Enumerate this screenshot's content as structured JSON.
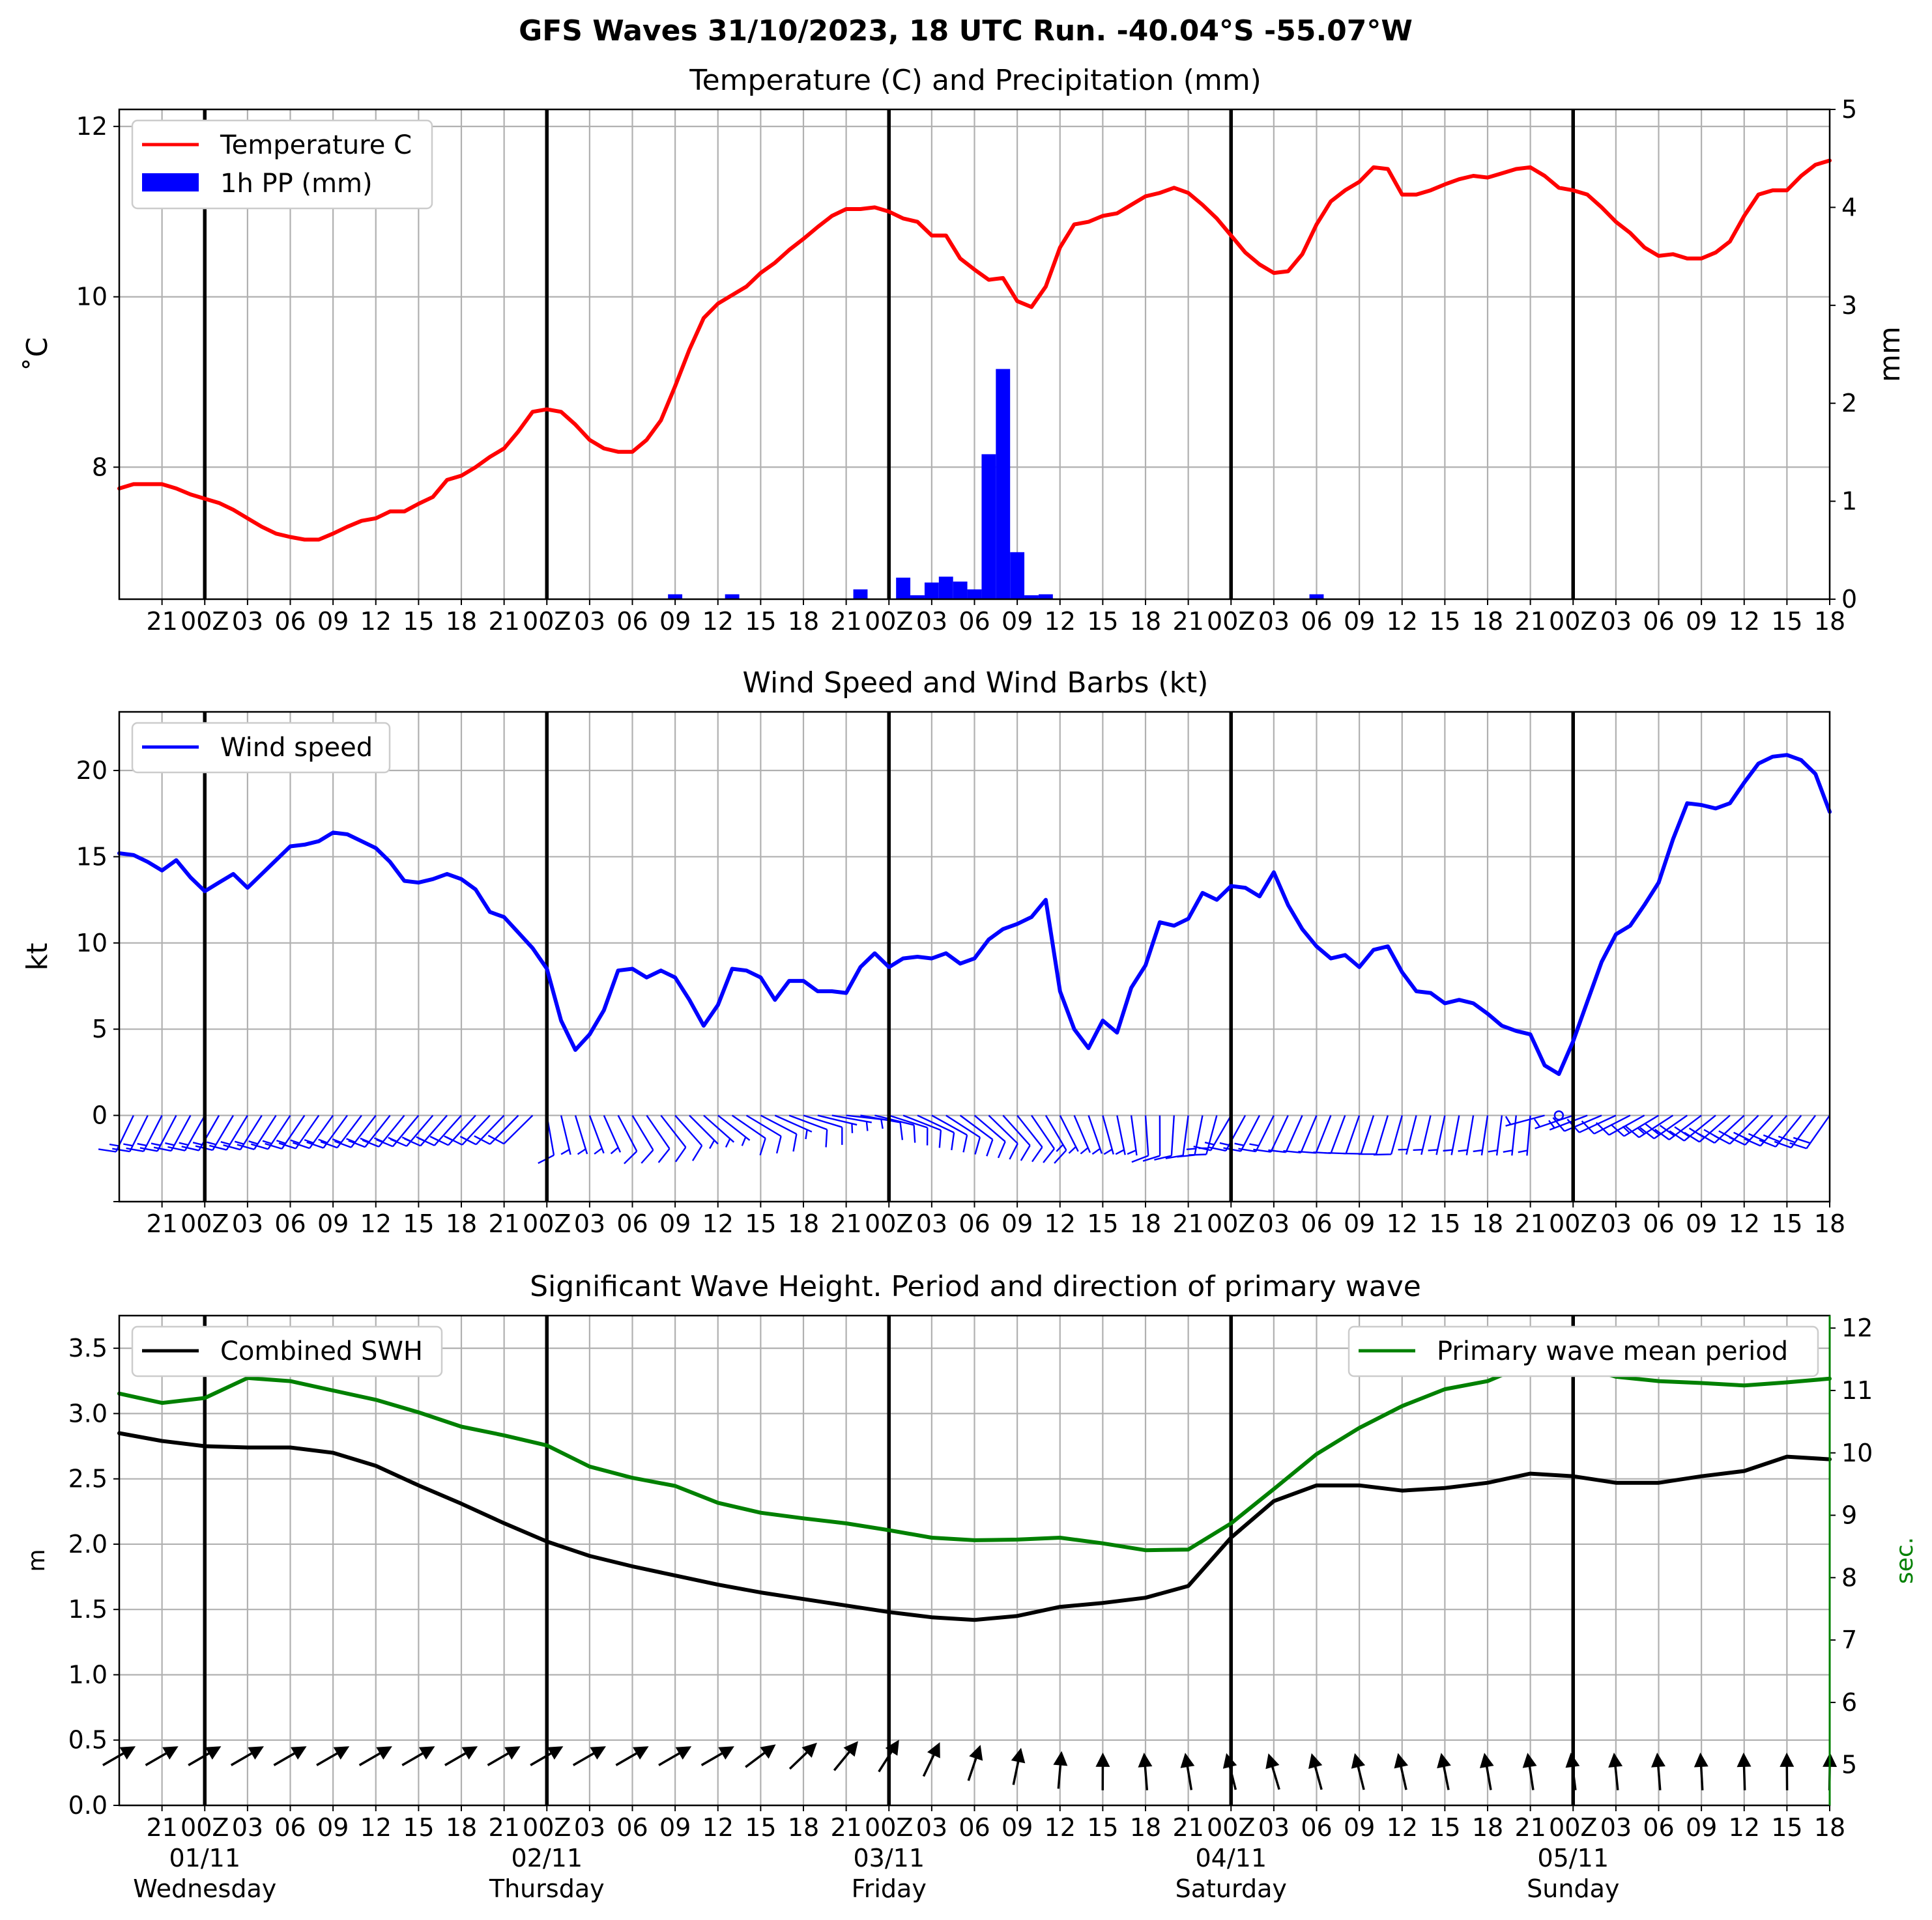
{
  "title": "GFS Waves 31/10/2023, 18 UTC Run. -40.04°S -55.07°W",
  "colors": {
    "temperature": "#ff0000",
    "precip": "#0000ff",
    "wind": "#0000ff",
    "swh": "#000000",
    "period": "#008000",
    "grid": "#b0b0b0"
  },
  "x_axis": {
    "start_hour": 18,
    "end_hour": 138,
    "step_hours": 3,
    "day_lines": [
      24,
      48,
      72,
      96,
      120
    ],
    "tick_labels": [
      "21",
      "00Z",
      "03",
      "06",
      "09",
      "12",
      "15",
      "18",
      "21",
      "00Z",
      "03",
      "06",
      "09",
      "12",
      "15",
      "18",
      "21",
      "00Z",
      "03",
      "06",
      "09",
      "12",
      "15",
      "18",
      "21",
      "00Z",
      "03",
      "06",
      "09",
      "12",
      "15",
      "18",
      "21",
      "00Z",
      "03",
      "06",
      "09",
      "12",
      "15",
      "18"
    ],
    "dates": [
      "01/11",
      "02/11",
      "03/11",
      "04/11",
      "05/11"
    ],
    "weekdays": [
      "Wednesday",
      "Thursday",
      "Friday",
      "Saturday",
      "Sunday"
    ]
  },
  "chart_data": [
    {
      "id": "temp_precip",
      "type": "line",
      "title": "Temperature (C) and Precipitation (mm)",
      "ylabel": "˚C",
      "ylabel_right": "mm",
      "ylim": [
        6.45,
        12.2
      ],
      "ylim_right": [
        0,
        5
      ],
      "yticks": [
        8,
        10,
        12
      ],
      "yticks_right": [
        0,
        1,
        2,
        3,
        4,
        5
      ],
      "legend": [
        "Temperature C",
        "1h PP (mm)"
      ],
      "legend_loc": "upper-left",
      "temperature": {
        "x": [
          18,
          19,
          20,
          21,
          22,
          23,
          24,
          25,
          26,
          27,
          28,
          29,
          30,
          31,
          32,
          33,
          34,
          35,
          36,
          37,
          38,
          39,
          40,
          41,
          42,
          43,
          44,
          45,
          46,
          47,
          48,
          49,
          50,
          51,
          52,
          53,
          54,
          55,
          56,
          57,
          58,
          59,
          60,
          61,
          62,
          63,
          64,
          65,
          66,
          67,
          68,
          69,
          70,
          71,
          72,
          73,
          74,
          75,
          76,
          77,
          78,
          79,
          80,
          81,
          82,
          83,
          84,
          85,
          86,
          87,
          88,
          89,
          90,
          91,
          92,
          93,
          94,
          95,
          96,
          97,
          98,
          99,
          100,
          101,
          102,
          103,
          104,
          105,
          106,
          107,
          108,
          109,
          110,
          111,
          112,
          113,
          114,
          115,
          116,
          117,
          118,
          119,
          120,
          121,
          122,
          123,
          124,
          125,
          126,
          127,
          128,
          129,
          130,
          131,
          132,
          133,
          134,
          135,
          136,
          137,
          138
        ],
        "values": [
          7.75,
          7.8,
          7.8,
          7.8,
          7.75,
          7.68,
          7.63,
          7.58,
          7.5,
          7.4,
          7.3,
          7.22,
          7.18,
          7.15,
          7.15,
          7.22,
          7.3,
          7.37,
          7.4,
          7.48,
          7.48,
          7.57,
          7.65,
          7.85,
          7.9,
          8.0,
          8.12,
          8.22,
          8.42,
          8.65,
          8.68,
          8.65,
          8.5,
          8.32,
          8.22,
          8.18,
          8.18,
          8.32,
          8.55,
          8.95,
          9.38,
          9.75,
          9.92,
          10.02,
          10.12,
          10.28,
          10.4,
          10.55,
          10.68,
          10.82,
          10.95,
          11.03,
          11.03,
          11.05,
          11.0,
          10.92,
          10.88,
          10.72,
          10.72,
          10.45,
          10.32,
          10.2,
          10.22,
          9.95,
          9.88,
          10.12,
          10.58,
          10.85,
          10.88,
          10.95,
          10.98,
          11.08,
          11.18,
          11.22,
          11.28,
          11.22,
          11.08,
          10.92,
          10.72,
          10.52,
          10.38,
          10.28,
          10.3,
          10.5,
          10.85,
          11.12,
          11.25,
          11.35,
          11.52,
          11.5,
          11.2,
          11.2,
          11.25,
          11.32,
          11.38,
          11.42,
          11.4,
          11.45,
          11.5,
          11.52,
          11.42,
          11.28,
          11.25,
          11.2,
          11.05,
          10.88,
          10.75,
          10.58,
          10.48,
          10.5,
          10.45,
          10.45,
          10.52,
          10.65,
          10.95,
          11.2,
          11.25,
          11.25,
          11.42,
          11.55,
          11.6
        ]
      },
      "precipitation": {
        "x": [
          57,
          61,
          70,
          73,
          74,
          75,
          76,
          77,
          78,
          79,
          80,
          81,
          82,
          83,
          102
        ],
        "values": [
          0.05,
          0.05,
          0.1,
          0.22,
          0.04,
          0.17,
          0.23,
          0.18,
          0.1,
          1.48,
          2.35,
          0.48,
          0.04,
          0.05,
          0.05
        ]
      }
    },
    {
      "id": "wind",
      "type": "line",
      "title": "Wind Speed and Wind Barbs (kt)",
      "ylabel": "kt",
      "ylim": [
        -5,
        23.4
      ],
      "yticks": [
        0,
        5,
        10,
        15,
        20
      ],
      "legend": [
        "Wind speed"
      ],
      "legend_loc": "upper-left",
      "series": [
        {
          "name": "Wind speed",
          "x": [
            18,
            19,
            20,
            21,
            22,
            23,
            24,
            25,
            26,
            27,
            28,
            29,
            30,
            31,
            32,
            33,
            34,
            35,
            36,
            37,
            38,
            39,
            40,
            41,
            42,
            43,
            44,
            45,
            46,
            47,
            48,
            49,
            50,
            51,
            52,
            53,
            54,
            55,
            56,
            57,
            58,
            59,
            60,
            61,
            62,
            63,
            64,
            65,
            66,
            67,
            68,
            69,
            70,
            71,
            72,
            73,
            74,
            75,
            76,
            77,
            78,
            79,
            80,
            81,
            82,
            83,
            84,
            85,
            86,
            87,
            88,
            89,
            90,
            91,
            92,
            93,
            94,
            95,
            96,
            97,
            98,
            99,
            100,
            101,
            102,
            103,
            104,
            105,
            106,
            107,
            108,
            109,
            110,
            111,
            112,
            113,
            114,
            115,
            116,
            117,
            118,
            119,
            120,
            121,
            122,
            123,
            124,
            125,
            126,
            127,
            128,
            129,
            130,
            131,
            132,
            133,
            134,
            135,
            136,
            137,
            138
          ],
          "values": [
            15.2,
            15.1,
            14.7,
            14.2,
            14.8,
            13.8,
            13.0,
            13.5,
            14.0,
            13.2,
            14.0,
            14.8,
            15.6,
            15.7,
            15.9,
            16.4,
            16.3,
            15.9,
            15.5,
            14.7,
            13.6,
            13.5,
            13.7,
            14.0,
            13.7,
            13.1,
            11.8,
            11.5,
            10.6,
            9.7,
            8.5,
            5.5,
            3.8,
            4.7,
            6.1,
            8.4,
            8.5,
            8.0,
            8.4,
            8.0,
            6.7,
            5.2,
            6.4,
            8.5,
            8.4,
            8.0,
            6.7,
            7.8,
            7.8,
            7.2,
            7.2,
            7.1,
            8.6,
            9.4,
            8.6,
            9.1,
            9.2,
            9.1,
            9.4,
            8.8,
            9.1,
            10.2,
            10.8,
            11.1,
            11.5,
            12.5,
            7.2,
            5.0,
            3.9,
            5.5,
            4.8,
            7.4,
            8.7,
            11.2,
            11.0,
            11.4,
            12.9,
            12.5,
            13.3,
            13.2,
            12.7,
            14.1,
            12.2,
            10.8,
            9.8,
            9.1,
            9.3,
            8.6,
            9.6,
            9.8,
            8.3,
            7.2,
            7.1,
            6.5,
            6.7,
            6.5,
            5.9,
            5.2,
            4.9,
            4.7,
            2.9,
            2.4,
            4.3,
            6.6,
            8.9,
            10.5,
            11.0,
            12.2,
            13.5,
            16.0,
            18.1,
            18.0,
            17.8,
            18.1,
            19.3,
            20.4,
            20.8,
            20.9,
            20.6,
            19.8,
            17.6
          ]
        }
      ]
    },
    {
      "id": "waves",
      "type": "line",
      "title": "Significant Wave Height. Period and direction of primary wave",
      "ylabel": "m",
      "ylabel_right": "sec.",
      "ylim": [
        0,
        3.75
      ],
      "ylim_right": [
        4.35,
        12.2
      ],
      "yticks": [
        0.0,
        0.5,
        1.0,
        1.5,
        2.0,
        2.5,
        3.0,
        3.5
      ],
      "yticks_right": [
        5,
        6,
        7,
        8,
        9,
        10,
        11,
        12
      ],
      "legend": [
        "Combined SWH",
        "Primary wave mean period"
      ],
      "series": [
        {
          "name": "Combined SWH",
          "axis": "left",
          "x": [
            18,
            21,
            24,
            27,
            30,
            33,
            36,
            39,
            42,
            45,
            48,
            51,
            54,
            57,
            60,
            63,
            66,
            69,
            72,
            75,
            78,
            81,
            84,
            87,
            90,
            93,
            96,
            99,
            102,
            105,
            108,
            111,
            114,
            117,
            120,
            123,
            126,
            129,
            132,
            135,
            138
          ],
          "values": [
            2.85,
            2.79,
            2.75,
            2.74,
            2.74,
            2.7,
            2.6,
            2.45,
            2.31,
            2.16,
            2.02,
            1.91,
            1.83,
            1.76,
            1.69,
            1.63,
            1.58,
            1.53,
            1.48,
            1.44,
            1.42,
            1.45,
            1.52,
            1.55,
            1.59,
            1.68,
            2.05,
            2.33,
            2.45,
            2.45,
            2.41,
            2.43,
            2.47,
            2.54,
            2.52,
            2.47,
            2.47,
            2.52,
            2.56,
            2.67,
            2.65
          ]
        },
        {
          "name": "Primary wave mean period",
          "axis": "right",
          "x": [
            18,
            21,
            24,
            27,
            30,
            33,
            36,
            39,
            42,
            45,
            48,
            51,
            54,
            57,
            60,
            63,
            66,
            69,
            72,
            75,
            78,
            81,
            84,
            87,
            90,
            93,
            96,
            99,
            102,
            105,
            108,
            111,
            114,
            117,
            120,
            123,
            126,
            129,
            132,
            135,
            138
          ],
          "values": [
            10.95,
            10.8,
            10.88,
            11.2,
            11.15,
            11.0,
            10.85,
            10.65,
            10.42,
            10.28,
            10.12,
            9.78,
            9.6,
            9.47,
            9.2,
            9.04,
            8.95,
            8.87,
            8.76,
            8.64,
            8.6,
            8.61,
            8.64,
            8.55,
            8.44,
            8.45,
            8.87,
            9.42,
            9.98,
            10.4,
            10.75,
            11.02,
            11.15,
            11.44,
            11.42,
            11.22,
            11.15,
            11.12,
            11.08,
            11.13,
            11.19
          ]
        }
      ]
    }
  ]
}
